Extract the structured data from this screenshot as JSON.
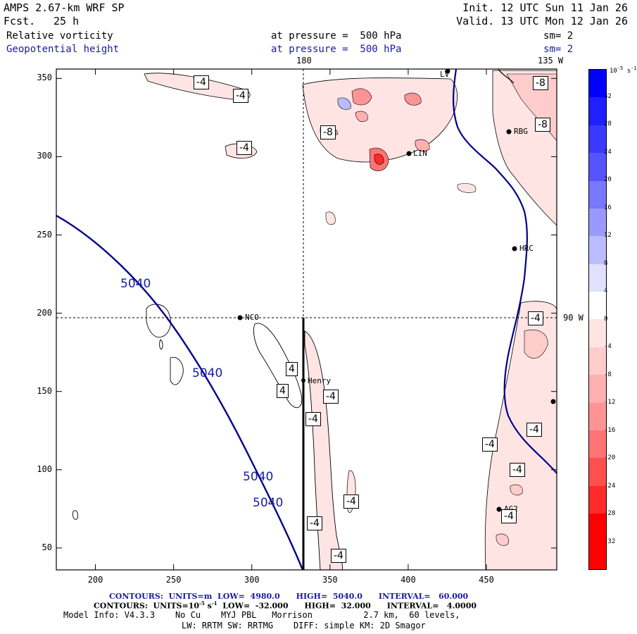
{
  "header": {
    "model": "AMPS 2.67-km WRF SP",
    "fcst_label": "Fcst.",
    "fcst_value": "25 h",
    "init": "Init. 12 UTC Sun 11 Jan 26",
    "valid": "Valid. 13 UTC Mon 12 Jan 26",
    "field1": "Relative vorticity",
    "field1_level": "at pressure =  500 hPa",
    "field1_sm": "sm= 2",
    "field2": "Geopotential height",
    "field2_level": "at pressure =  500 hPa",
    "field2_sm": "sm= 2"
  },
  "map_labels": {
    "lon_180": "180",
    "lon_135w": "135 W",
    "lon_90w": "90 W"
  },
  "axes": {
    "x_ticks": [
      "200",
      "250",
      "300",
      "350",
      "400",
      "450"
    ],
    "y_ticks": [
      "350",
      "300",
      "250",
      "200",
      "150",
      "100",
      "50"
    ]
  },
  "stations": [
    {
      "name": "NCO"
    },
    {
      "name": "Henry"
    },
    {
      "name": "RBG"
    },
    {
      "name": "LIN"
    },
    {
      "name": "HRC"
    },
    {
      "name": "AG2"
    },
    {
      "name": "LV"
    }
  ],
  "contour_labels": {
    "height": [
      "5040",
      "5040",
      "5040",
      "5040"
    ],
    "vort": [
      "-4",
      "-4",
      "-4",
      "-8",
      "-4",
      "4",
      "4",
      "-4",
      "-4",
      "-4",
      "-4",
      "-4",
      "-4",
      "-4",
      "-4",
      "-4",
      "-8",
      "-8"
    ]
  },
  "colorbar": {
    "unit": "10",
    "unit_exp": "-5",
    "unit_tail": "s",
    "unit_tail_exp": "-1",
    "ticks": [
      "32",
      "28",
      "24",
      "20",
      "16",
      "12",
      "8",
      "4",
      "0",
      "-4",
      "-8",
      "-12",
      "-16",
      "-20",
      "-24",
      "-28",
      "-32"
    ],
    "colors": [
      "#0000ff",
      "#1f1fff",
      "#3a3aff",
      "#5555ff",
      "#7777ff",
      "#9999ff",
      "#bbbbff",
      "#e0e0ff",
      "#ffffff",
      "#ffe4e4",
      "#ffcccc",
      "#ffb0b0",
      "#ff9494",
      "#ff7474",
      "#ff5050",
      "#ff2a2a",
      "#ff0000"
    ]
  },
  "footer": {
    "contours1": "CONTOURS:  UNITS=m  LOW=  4980.0      HIGH=  5040.0      INTERVAL=   60.000",
    "contours2_a": "CONTOURS:  UNITS=10",
    "contours2_exp": "-5",
    "contours2_b": " s",
    "contours2_exp2": "-1",
    "contours2_c": "  LOW=  -32.000      HIGH=  32.000      INTERVAL=   4.0000",
    "model_info": "Model Info: V4.3.3    No Cu    MYJ PBL   Morrison          2.7 km,  60 levels,",
    "model_info2": "LW: RRTM SW: RRTMG    DIFF: simple KM: 2D Smagor"
  }
}
